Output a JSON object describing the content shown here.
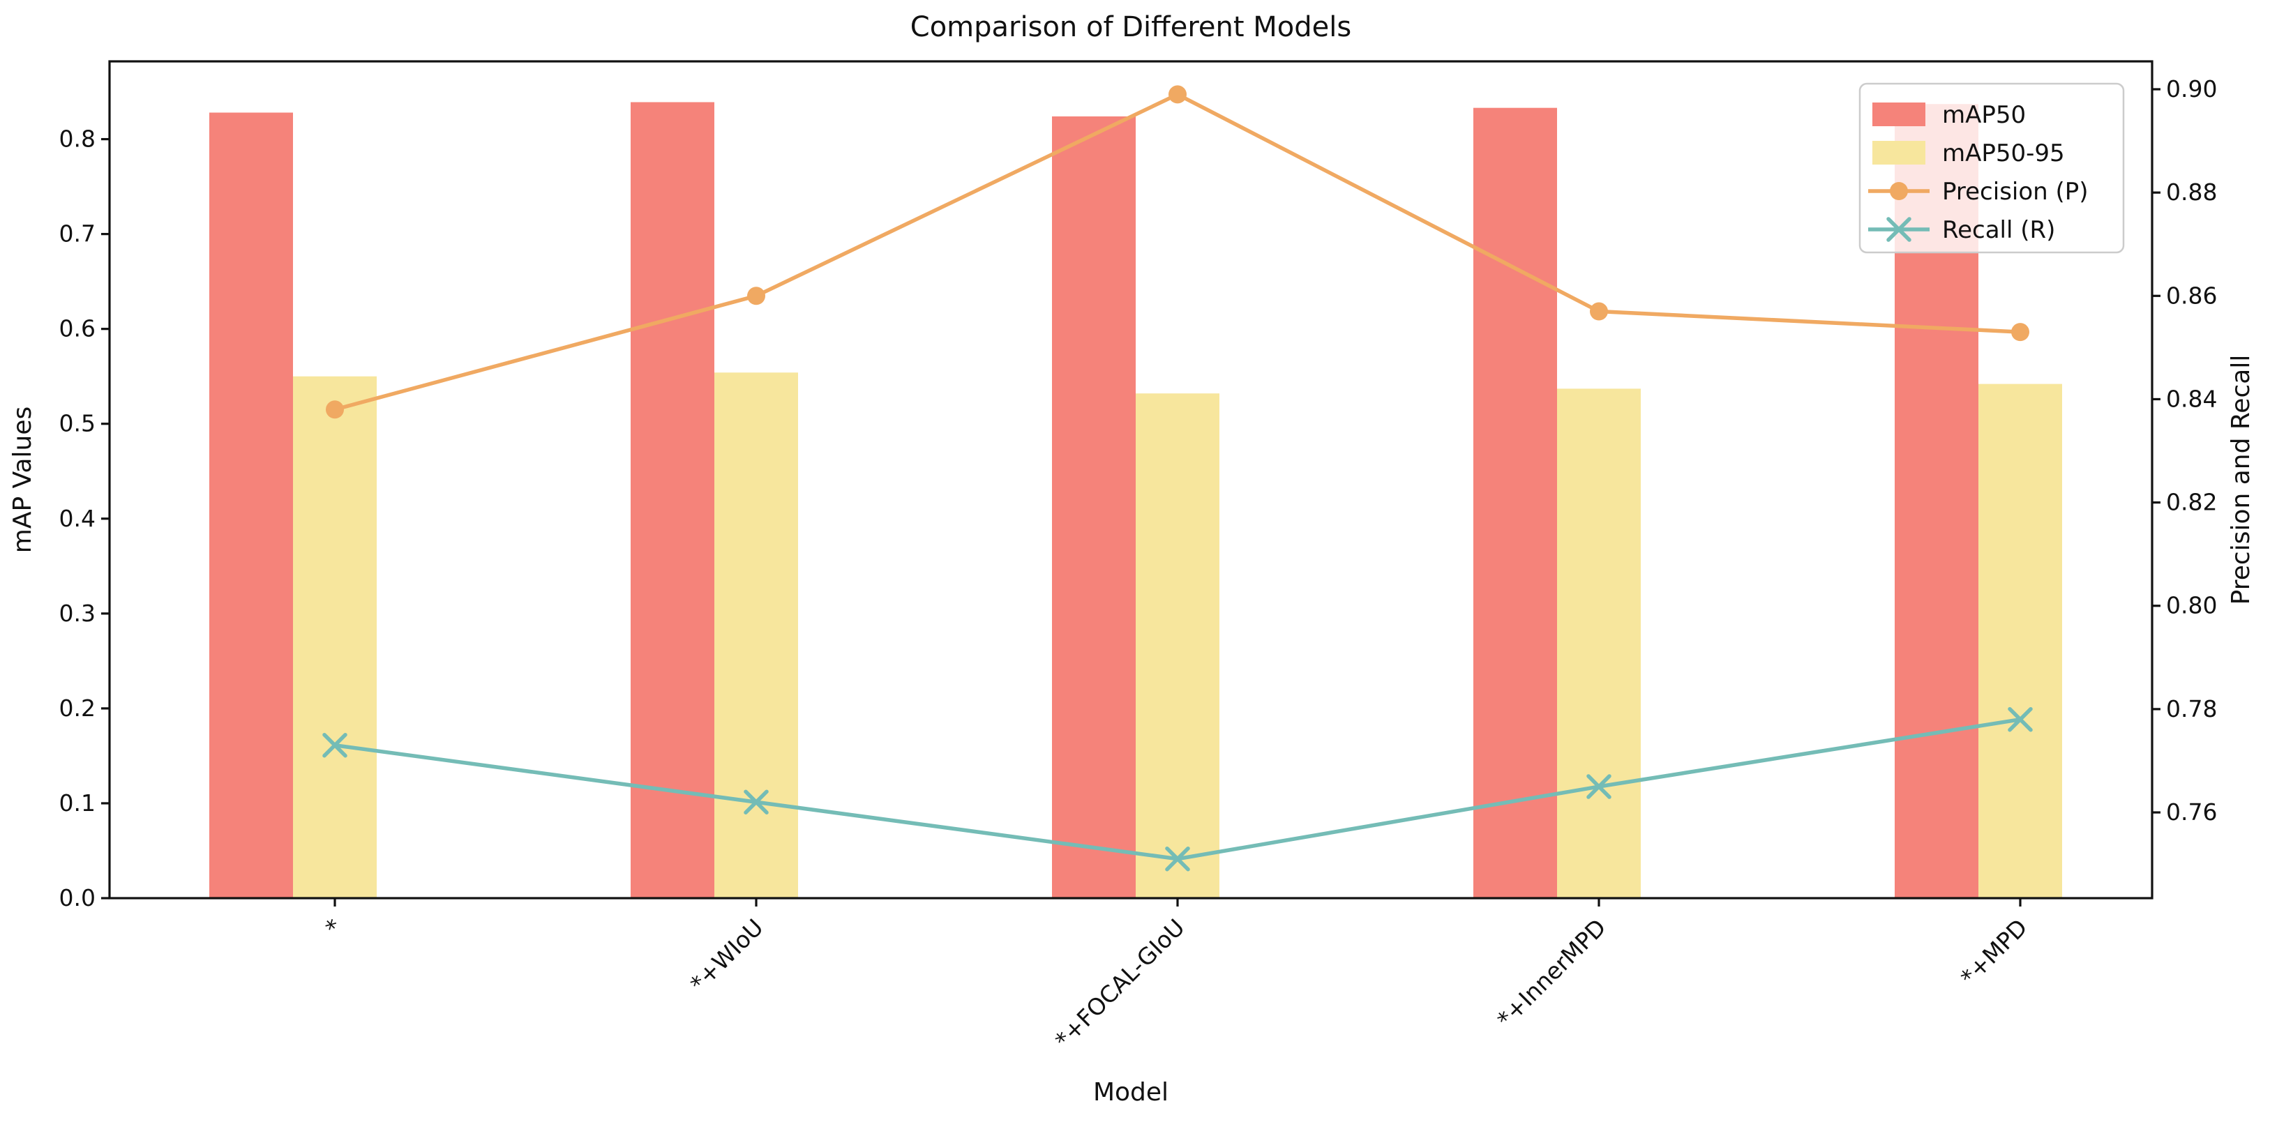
{
  "figure": {
    "title": "Comparison of Different Models",
    "xlabel": "Model",
    "ylabel_left": "mAP Values",
    "ylabel_right": "Precision and Recall"
  },
  "colors": {
    "map50_bar": "#f5837a",
    "map5095_bar": "#f7e69d",
    "precision_line": "#f0a962",
    "recall_line": "#74bcb6",
    "axis": "#111111",
    "legend_border": "#cccccc",
    "background": "#ffffff"
  },
  "chart_data": {
    "type": "combo",
    "title": "Comparison of Different Models",
    "xlabel": "Model",
    "categories": [
      "*",
      "*+WIoU",
      "*+FOCAL-GIoU",
      "*+InnerMPD",
      "*+MPD"
    ],
    "series": [
      {
        "name": "mAP50",
        "type": "bar",
        "axis": "left",
        "color": "#f5837a",
        "values": [
          0.828,
          0.839,
          0.824,
          0.833,
          0.837
        ]
      },
      {
        "name": "mAP50-95",
        "type": "bar",
        "axis": "left",
        "color": "#f7e69d",
        "values": [
          0.55,
          0.554,
          0.532,
          0.537,
          0.542
        ]
      },
      {
        "name": "Precision (P)",
        "type": "line",
        "marker": "circle",
        "axis": "right",
        "color": "#f0a962",
        "values": [
          0.838,
          0.86,
          0.899,
          0.857,
          0.853
        ]
      },
      {
        "name": "Recall (R)",
        "type": "line",
        "marker": "x",
        "axis": "right",
        "color": "#74bcb6",
        "values": [
          0.773,
          0.762,
          0.751,
          0.765,
          0.778
        ]
      }
    ],
    "left_axis": {
      "label": "mAP Values",
      "lim": [
        0,
        0.882
      ],
      "ticks": [
        {
          "v": 0.0,
          "label": "0.0"
        },
        {
          "v": 0.1,
          "label": "0.1"
        },
        {
          "v": 0.2,
          "label": "0.2"
        },
        {
          "v": 0.3,
          "label": "0.3"
        },
        {
          "v": 0.4,
          "label": "0.4"
        },
        {
          "v": 0.5,
          "label": "0.5"
        },
        {
          "v": 0.6,
          "label": "0.6"
        },
        {
          "v": 0.7,
          "label": "0.7"
        },
        {
          "v": 0.8,
          "label": "0.8"
        }
      ]
    },
    "right_axis": {
      "label": "Precision and Recall",
      "lim": [
        0.7434,
        0.9054
      ],
      "ticks": [
        {
          "v": 0.76,
          "label": "0.76"
        },
        {
          "v": 0.78,
          "label": "0.78"
        },
        {
          "v": 0.8,
          "label": "0.80"
        },
        {
          "v": 0.82,
          "label": "0.82"
        },
        {
          "v": 0.84,
          "label": "0.84"
        },
        {
          "v": 0.86,
          "label": "0.86"
        },
        {
          "v": 0.88,
          "label": "0.88"
        },
        {
          "v": 0.9,
          "label": "0.90"
        }
      ]
    },
    "legend": {
      "position": "upper right",
      "items": [
        "mAP50",
        "mAP50-95",
        "Precision (P)",
        "Recall (R)"
      ]
    },
    "grid": false,
    "legend_background_opacity": 0.8
  }
}
